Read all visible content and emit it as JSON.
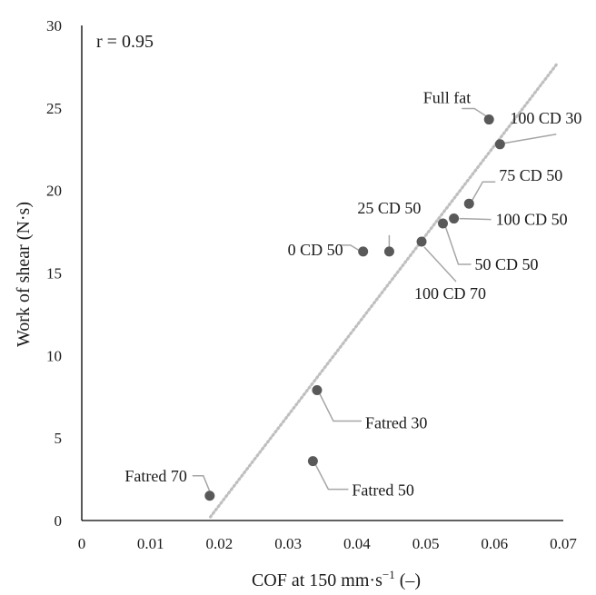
{
  "chart_data": {
    "type": "scatter",
    "xlabel_main": "COF at 150 mm·s",
    "xlabel_sup": "−1",
    "xlabel_tail": " (–)",
    "ylabel": "Work of shear (N·s)",
    "xlim": [
      0,
      0.07
    ],
    "ylim": [
      0,
      30
    ],
    "x_ticks": [
      "0",
      "0.01",
      "0.02",
      "0.03",
      "0.04",
      "0.05",
      "0.06",
      "0.07"
    ],
    "y_ticks": [
      "0",
      "5",
      "10",
      "15",
      "20",
      "25",
      "30"
    ],
    "annotation": "r = 0.95",
    "grid": false,
    "trendline": {
      "style": "dotted",
      "x_start": 0.0187,
      "x_end": 0.069
    },
    "colors": {
      "point": "#595959",
      "trendline": "#bfbfbf",
      "leader": "#a6a6a6",
      "axis": "#000000"
    },
    "points": [
      {
        "label": "Full fat",
        "x": 0.0592,
        "y": 24.3
      },
      {
        "label": "100 CD 30",
        "x": 0.0608,
        "y": 22.8
      },
      {
        "label": "75 CD 50",
        "x": 0.0563,
        "y": 19.2
      },
      {
        "label": "100 CD 50",
        "x": 0.0541,
        "y": 18.3
      },
      {
        "label": "50 CD 50",
        "x": 0.0525,
        "y": 18.0
      },
      {
        "label": "100 CD 70",
        "x": 0.0494,
        "y": 16.9
      },
      {
        "label": "25 CD 50",
        "x": 0.0447,
        "y": 16.3
      },
      {
        "label": "0 CD 50",
        "x": 0.0409,
        "y": 16.3
      },
      {
        "label": "Fatred 30",
        "x": 0.0342,
        "y": 7.9
      },
      {
        "label": "Fatred 50",
        "x": 0.0336,
        "y": 3.6
      },
      {
        "label": "Fatred 70",
        "x": 0.0186,
        "y": 1.5
      }
    ]
  }
}
